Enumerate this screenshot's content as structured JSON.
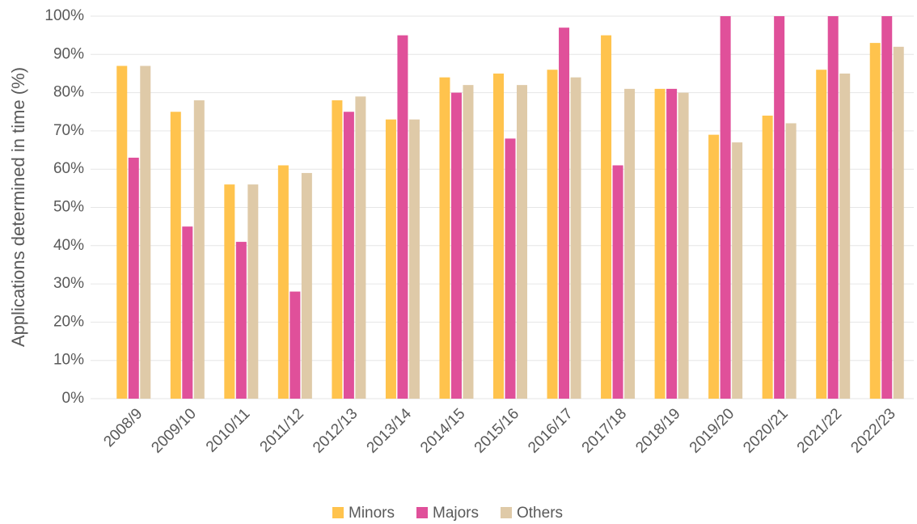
{
  "chart_data": {
    "type": "bar",
    "y_label": "Applications determined in time (%)",
    "categories": [
      "2008/9",
      "2009/10",
      "2010/11",
      "2011/12",
      "2012/13",
      "2013/14",
      "2014/15",
      "2015/16",
      "2016/17",
      "2017/18",
      "2018/19",
      "2019/20",
      "2020/21",
      "2021/22",
      "2022/23"
    ],
    "series": [
      {
        "name": "Minors",
        "color": "#ffc34d",
        "values": [
          87,
          75,
          56,
          61,
          78,
          73,
          84,
          85,
          86,
          95,
          81,
          69,
          74,
          86,
          93
        ]
      },
      {
        "name": "Majors",
        "color": "#e0509a",
        "values": [
          63,
          45,
          41,
          28,
          75,
          95,
          80,
          68,
          97,
          61,
          81,
          100,
          100,
          100,
          100
        ]
      },
      {
        "name": "Others",
        "color": "#dfcaa8",
        "values": [
          87,
          78,
          56,
          59,
          79,
          73,
          82,
          82,
          84,
          81,
          80,
          67,
          72,
          85,
          92
        ]
      }
    ],
    "ylim": [
      0,
      100
    ],
    "yticks": [
      {
        "value": 0,
        "label": "0%"
      },
      {
        "value": 10,
        "label": "10%"
      },
      {
        "value": 20,
        "label": "20%"
      },
      {
        "value": 30,
        "label": "30%"
      },
      {
        "value": 40,
        "label": "40%"
      },
      {
        "value": 50,
        "label": "50%"
      },
      {
        "value": 60,
        "label": "60%"
      },
      {
        "value": 70,
        "label": "70%"
      },
      {
        "value": 80,
        "label": "80%"
      },
      {
        "value": 90,
        "label": "90%"
      },
      {
        "value": 100,
        "label": "100%"
      }
    ],
    "grid": true,
    "legend": "bottom"
  }
}
